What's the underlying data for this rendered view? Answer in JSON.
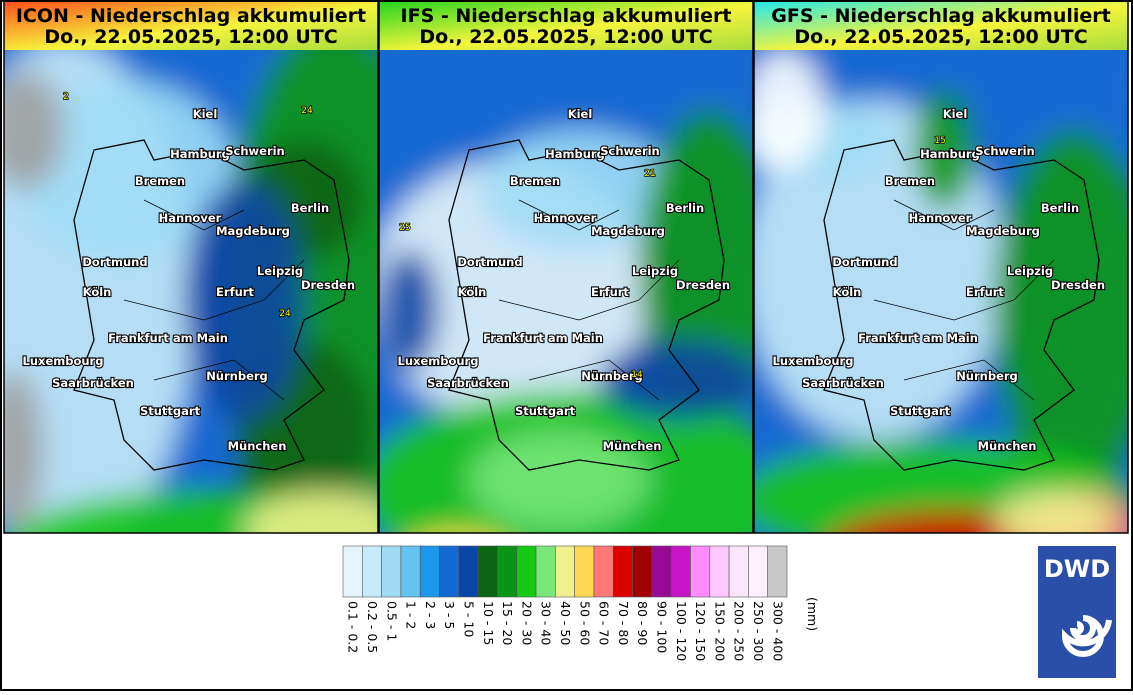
{
  "panels": [
    {
      "title": "ICON - Niederschlag akkumuliert",
      "date": "Do., 22.05.2025, 12:00 UTC",
      "header_color": "#ff4a1a",
      "point_labels": [
        "2",
        "24",
        "24"
      ]
    },
    {
      "title": "IFS - Niederschlag akkumuliert",
      "date": "Do., 22.05.2025, 12:00 UTC",
      "header_color": "#1ed21e",
      "point_labels": [
        "25",
        "21",
        "14"
      ]
    },
    {
      "title": "GFS - Niederschlag akkumuliert",
      "date": "Do., 22.05.2025, 12:00 UTC",
      "header_color": "#1ee6f0",
      "point_labels": [
        "15"
      ]
    }
  ],
  "cities": [
    "Kiel",
    "Hamburg",
    "Schwerin",
    "Bremen",
    "Berlin",
    "Hannover",
    "Magdeburg",
    "Dortmund",
    "Leipzig",
    "Köln",
    "Erfurt",
    "Dresden",
    "Frankfurt am Main",
    "Luxembourg",
    "Nürnberg",
    "Saarbrücken",
    "Stuttgart",
    "München"
  ],
  "legend": {
    "unit": "(mm)",
    "bins": [
      "0.1 - 0.2",
      "0.2 - 0.5",
      "0.5 - 1",
      "1 - 2",
      "2 - 3",
      "3 - 5",
      "5 - 10",
      "10 - 15",
      "15 - 20",
      "20 - 30",
      "30 - 40",
      "40 - 50",
      "50 - 60",
      "60 - 70",
      "70 - 80",
      "80 - 90",
      "90 - 100",
      "100 - 120",
      "120 - 150",
      "150 - 200",
      "200 - 250",
      "250 - 300",
      "300 - 400"
    ],
    "colors": [
      "#e6f5fc",
      "#c6ebfa",
      "#a0dcf6",
      "#64c3f0",
      "#1e96eb",
      "#1469d2",
      "#0a46a5",
      "#0a6414",
      "#0a9614",
      "#14c814",
      "#78e678",
      "#f0f08c",
      "#ffd750",
      "#ff7878",
      "#dc0000",
      "#a00000",
      "#960a96",
      "#c814c8",
      "#ff8cff",
      "#ffc8ff",
      "#fae6fa",
      "#fff0ff",
      "#c8c8c8"
    ]
  },
  "logo": {
    "text": "DWD"
  }
}
